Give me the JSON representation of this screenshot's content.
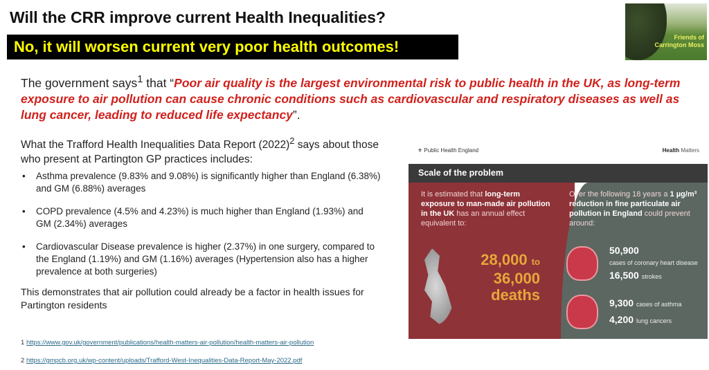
{
  "title": "Will the CRR improve current Health Inequalities?",
  "banner": "No, it will worsen current very poor health outcomes!",
  "logo_text": "Friends of Carrington Moss",
  "quote": {
    "prefix": "The government says",
    "sup": "1",
    "mid": " that “",
    "red": "Poor air quality is the largest environmental risk to public health in the UK, as long-term exposure to air pollution can cause chronic conditions such as cardiovascular and respiratory diseases as well as lung cancer, leading to reduced life expectancy",
    "suffix": "”."
  },
  "report": {
    "prefix": "What the Trafford Health Inequalities Data Report (2022)",
    "sup": "2",
    "suffix": " says about those who present at Partington GP practices includes:"
  },
  "bullets": [
    "Asthma prevalence (9.83% and 9.08%) is significantly higher than England (6.38%) and GM (6.88%) averages",
    "COPD prevalence (4.5% and 4.23%) is much higher than England (1.93%) and GM (2.34%) averages",
    "Cardiovascular Disease prevalence is higher (2.37%) in one surgery, compared to the England (1.19%) and GM (1.16%) averages (Hypertension also has a higher prevalence at both surgeries)"
  ],
  "conclusion": "This demonstrates that air pollution could already be a factor in health issues for Partington residents",
  "footnotes": [
    {
      "num": "1",
      "url": "https://www.gov.uk/government/publications/health-matters-air-pollution/health-matters-air-pollution"
    },
    {
      "num": "2",
      "url": "https://gmpcb.org.uk/wp-content/uploads/Trafford-West-Inequalities-Data-Report-May-2022.pdf"
    }
  ],
  "infographic": {
    "org": "Public Health England",
    "series_bold": "Health",
    "series": " Matters",
    "heading": "Scale of the problem",
    "left_pre": "It is estimated that ",
    "left_bold": "long-term exposure to man-made air pollution in the UK",
    "left_post": " has an annual effect equivalent to:",
    "deaths_low": "28,000",
    "to": "to",
    "deaths_high": "36,000",
    "deaths": "deaths",
    "right_pre": "Over the following 18 years a ",
    "right_bold1": "1 µg/m³ reduction in fine particulate air pollution in England",
    "right_post": " could prevent around:",
    "stats": [
      {
        "value": "50,900",
        "label": "cases of coronary heart disease"
      },
      {
        "value": "16,500",
        "label": "strokes"
      },
      {
        "value": "9,300",
        "label": "cases of asthma"
      },
      {
        "value": "4,200",
        "label": "lung cancers"
      }
    ]
  }
}
